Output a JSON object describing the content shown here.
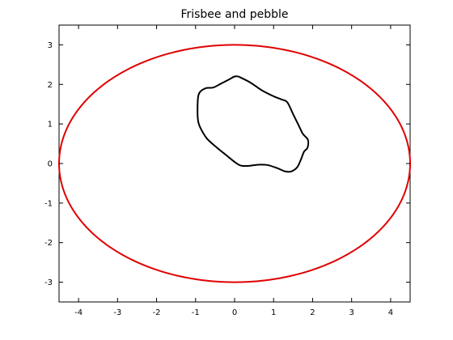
{
  "chart_data": {
    "type": "line",
    "title": "Frisbee and pebble",
    "xlabel": "",
    "ylabel": "",
    "xlim": [
      -4.5,
      4.5
    ],
    "ylim": [
      -3.5,
      3.5
    ],
    "xticks": [
      -4,
      -3,
      -2,
      -1,
      0,
      1,
      2,
      3,
      4
    ],
    "yticks": [
      -3,
      -2,
      -1,
      0,
      1,
      2,
      3
    ],
    "grid": false,
    "legend": "none",
    "series": [
      {
        "id": "frisbee",
        "color": "#e00000",
        "shape": "ellipse",
        "center": [
          0,
          0
        ],
        "semi_axes": [
          4.5,
          3
        ]
      },
      {
        "id": "pebble",
        "color": "#000000",
        "x": [
          0.1,
          0.4,
          0.7,
          1.0,
          1.2,
          1.35,
          1.5,
          1.65,
          1.75,
          1.88,
          1.87,
          1.78,
          1.7,
          1.6,
          1.45,
          1.3,
          1.1,
          0.85,
          0.6,
          0.35,
          0.15,
          0.0,
          -0.2,
          -0.45,
          -0.7,
          -0.85,
          -0.93,
          -0.95,
          -0.92,
          -0.75,
          -0.55,
          -0.35,
          -0.15,
          0.0,
          0.1
        ],
        "y": [
          2.2,
          2.05,
          1.85,
          1.7,
          1.62,
          1.55,
          1.25,
          0.95,
          0.75,
          0.6,
          0.4,
          0.3,
          0.1,
          -0.1,
          -0.2,
          -0.2,
          -0.12,
          -0.04,
          -0.03,
          -0.06,
          -0.05,
          0.04,
          0.2,
          0.4,
          0.62,
          0.85,
          1.05,
          1.35,
          1.75,
          1.9,
          1.92,
          2.02,
          2.12,
          2.2,
          2.2
        ]
      }
    ]
  }
}
